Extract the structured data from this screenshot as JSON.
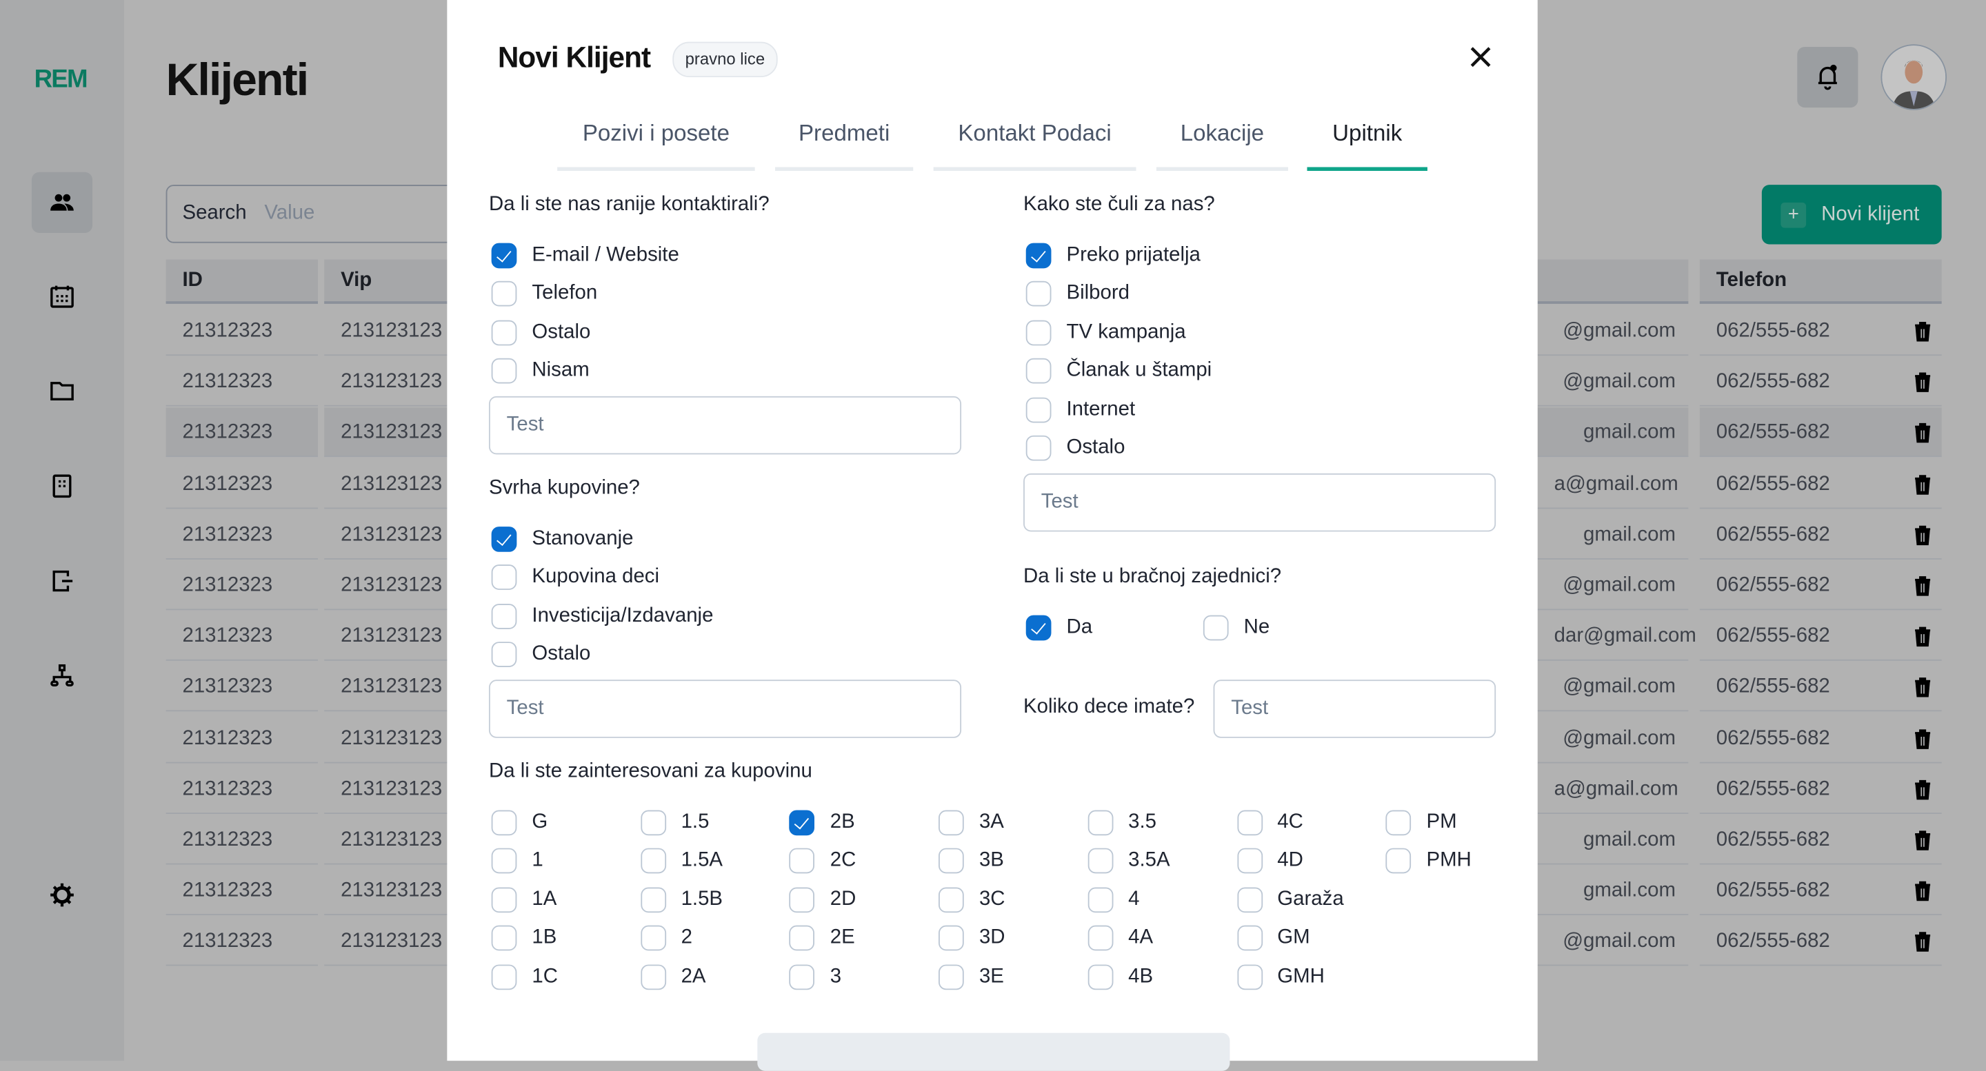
{
  "sidebar": {
    "logo": "REM",
    "items": [
      "users",
      "calendar",
      "folder",
      "building",
      "logout",
      "sitemap"
    ],
    "settings": "gear"
  },
  "page": {
    "title": "Klijenti"
  },
  "search": {
    "label": "Search",
    "value": "Value"
  },
  "table": {
    "headers": {
      "id": "ID",
      "vip": "Vip",
      "telefon": "Telefon"
    },
    "rows": [
      {
        "id": "21312323",
        "vip": "213123123",
        "email": "@gmail.com",
        "telefon": "062/555-682"
      },
      {
        "id": "21312323",
        "vip": "213123123",
        "email": "@gmail.com",
        "telefon": "062/555-682"
      },
      {
        "id": "21312323",
        "vip": "213123123",
        "email": "gmail.com",
        "telefon": "062/555-682"
      },
      {
        "id": "21312323",
        "vip": "213123123",
        "email": "a@gmail.com",
        "telefon": "062/555-682"
      },
      {
        "id": "21312323",
        "vip": "213123123",
        "email": "gmail.com",
        "telefon": "062/555-682"
      },
      {
        "id": "21312323",
        "vip": "213123123",
        "email": "@gmail.com",
        "telefon": "062/555-682"
      },
      {
        "id": "21312323",
        "vip": "213123123",
        "email": "dar@gmail.com",
        "telefon": "062/555-682"
      },
      {
        "id": "21312323",
        "vip": "213123123",
        "email": "@gmail.com",
        "telefon": "062/555-682"
      },
      {
        "id": "21312323",
        "vip": "213123123",
        "email": "@gmail.com",
        "telefon": "062/555-682"
      },
      {
        "id": "21312323",
        "vip": "213123123",
        "email": "a@gmail.com",
        "telefon": "062/555-682"
      },
      {
        "id": "21312323",
        "vip": "213123123",
        "email": "gmail.com",
        "telefon": "062/555-682"
      },
      {
        "id": "21312323",
        "vip": "213123123",
        "email": "gmail.com",
        "telefon": "062/555-682"
      },
      {
        "id": "21312323",
        "vip": "213123123",
        "email": "@gmail.com",
        "telefon": "062/555-682"
      }
    ]
  },
  "header": {
    "new_client_label": "Novi klijent"
  },
  "modal": {
    "title": "Novi Klijent",
    "badge": "pravno lice",
    "tabs": [
      {
        "label": "Pozivi i posete"
      },
      {
        "label": "Predmeti"
      },
      {
        "label": "Kontakt Podaci"
      },
      {
        "label": "Lokacije"
      },
      {
        "label": "Upitnik",
        "active": true
      }
    ],
    "contacted": {
      "question": "Da li ste nas ranije kontaktirali?",
      "options": [
        {
          "label": "E-mail / Website",
          "checked": true
        },
        {
          "label": "Telefon"
        },
        {
          "label": "Ostalo"
        },
        {
          "label": "Nisam"
        }
      ],
      "input_value": "Test"
    },
    "purpose": {
      "question": "Svrha kupovine?",
      "options": [
        {
          "label": "Stanovanje",
          "checked": true
        },
        {
          "label": "Kupovina deci"
        },
        {
          "label": "Investicija/Izdavanje"
        },
        {
          "label": "Ostalo"
        }
      ],
      "input_value": "Test"
    },
    "heard": {
      "question": "Kako ste čuli za nas?",
      "options": [
        {
          "label": "Preko prijatelja",
          "checked": true
        },
        {
          "label": "Bilbord"
        },
        {
          "label": "TV kampanja"
        },
        {
          "label": "Članak u štampi"
        },
        {
          "label": "Internet"
        },
        {
          "label": "Ostalo"
        }
      ],
      "input_value": "Test"
    },
    "married": {
      "question": "Da li ste u bračnoj zajednici?",
      "options": [
        {
          "label": "Da",
          "checked": true
        },
        {
          "label": "Ne"
        }
      ]
    },
    "children": {
      "label": "Koliko dece imate?",
      "input_value": "Test"
    },
    "interest": {
      "question": "Da li ste zainteresovani za kupovinu",
      "columns": [
        [
          {
            "label": "G"
          },
          {
            "label": "1"
          },
          {
            "label": "1A"
          },
          {
            "label": "1B"
          },
          {
            "label": "1C"
          }
        ],
        [
          {
            "label": "1.5"
          },
          {
            "label": "1.5A"
          },
          {
            "label": "1.5B"
          },
          {
            "label": "2"
          },
          {
            "label": "2A"
          }
        ],
        [
          {
            "label": "2B",
            "checked": true
          },
          {
            "label": "2C"
          },
          {
            "label": "2D"
          },
          {
            "label": "2E"
          },
          {
            "label": "3"
          }
        ],
        [
          {
            "label": "3A"
          },
          {
            "label": "3B"
          },
          {
            "label": "3C"
          },
          {
            "label": "3D"
          },
          {
            "label": "3E"
          }
        ],
        [
          {
            "label": "3.5"
          },
          {
            "label": "3.5A"
          },
          {
            "label": "4"
          },
          {
            "label": "4A"
          },
          {
            "label": "4B"
          }
        ],
        [
          {
            "label": "4C"
          },
          {
            "label": "4D"
          },
          {
            "label": "Garaža"
          },
          {
            "label": "GM"
          },
          {
            "label": "GMH"
          }
        ],
        [
          {
            "label": "PM"
          },
          {
            "label": "PMH"
          }
        ]
      ]
    }
  },
  "colors": {
    "accent": "#0fa58a",
    "brand": "#027a66",
    "checkbox": "#0b6fd0"
  }
}
